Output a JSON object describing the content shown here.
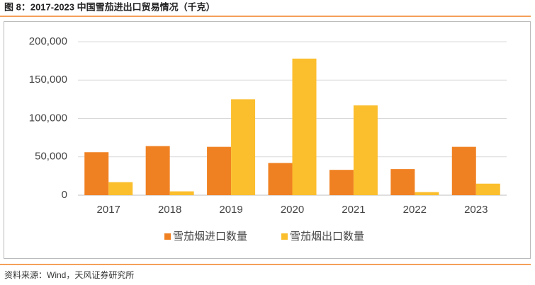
{
  "chart_data": {
    "type": "bar",
    "title": "图 8：2017-2023 中国雪茄进出口贸易情况（千克）",
    "source": "资料来源：Wind，天风证券研究所",
    "categories": [
      "2017",
      "2018",
      "2019",
      "2020",
      "2021",
      "2022",
      "2023"
    ],
    "series": [
      {
        "name": "雪茄烟进口数量",
        "color": "#f08122",
        "values": [
          56000,
          64000,
          63000,
          42000,
          33000,
          34000,
          63000
        ]
      },
      {
        "name": "雪茄烟出口数量",
        "color": "#fbbe2d",
        "values": [
          17000,
          5000,
          125000,
          178000,
          117000,
          4000,
          15000
        ]
      }
    ],
    "ylim": [
      0,
      200000
    ],
    "yticks": [
      0,
      {
        "value": 50000,
        "label": "50,000"
      },
      {
        "value": 100000,
        "label": "100,000"
      },
      {
        "value": 150000,
        "label": "150,000"
      },
      {
        "value": 200000,
        "label": "200,000"
      }
    ],
    "grid": true
  }
}
